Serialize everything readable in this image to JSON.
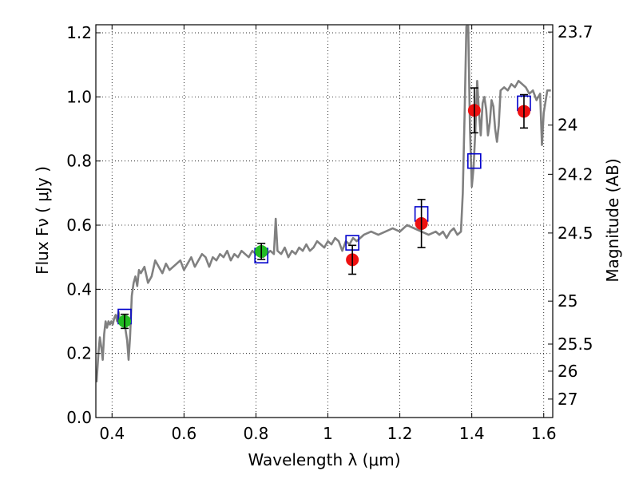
{
  "chart_data": {
    "type": "scatter",
    "xlabel": "Wavelength  λ (μm)",
    "ylabel": "Flux  Fν  ( μJy )",
    "y2label": "Magnitude (AB)",
    "xlim": [
      0.355,
      1.625
    ],
    "ylim": [
      0.0,
      1.225
    ],
    "grid": true,
    "x_ticks": [
      {
        "value": 0.4,
        "label": "0.4"
      },
      {
        "value": 0.6,
        "label": "0.6"
      },
      {
        "value": 0.8,
        "label": "0.8"
      },
      {
        "value": 1.0,
        "label": "1"
      },
      {
        "value": 1.2,
        "label": "1.2"
      },
      {
        "value": 1.4,
        "label": "1.4"
      },
      {
        "value": 1.6,
        "label": "1.6"
      }
    ],
    "y_ticks": [
      {
        "value": 0.0,
        "label": "0.0"
      },
      {
        "value": 0.2,
        "label": "0.2"
      },
      {
        "value": 0.4,
        "label": "0.4"
      },
      {
        "value": 0.6,
        "label": "0.6"
      },
      {
        "value": 0.8,
        "label": "0.8"
      },
      {
        "value": 1.0,
        "label": "1.0"
      },
      {
        "value": 1.2,
        "label": "1.2"
      }
    ],
    "y2_ticks": [
      {
        "value": 23.7,
        "label": "23.7"
      },
      {
        "value": 24.0,
        "label": "24"
      },
      {
        "value": 24.2,
        "label": "24.2"
      },
      {
        "value": 24.5,
        "label": "24.5"
      },
      {
        "value": 25.0,
        "label": "25"
      },
      {
        "value": 25.5,
        "label": "25.5"
      },
      {
        "value": 26.0,
        "label": "26"
      },
      {
        "value": 27.0,
        "label": "27"
      }
    ],
    "series": [
      {
        "kind": "line",
        "color": "#808080",
        "x": [
          0.357,
          0.362,
          0.366,
          0.37,
          0.374,
          0.378,
          0.382,
          0.386,
          0.39,
          0.394,
          0.398,
          0.402,
          0.406,
          0.41,
          0.414,
          0.418,
          0.422,
          0.426,
          0.43,
          0.434,
          0.438,
          0.442,
          0.446,
          0.45,
          0.455,
          0.46,
          0.465,
          0.47,
          0.475,
          0.48,
          0.49,
          0.5,
          0.51,
          0.52,
          0.53,
          0.54,
          0.55,
          0.56,
          0.57,
          0.58,
          0.59,
          0.6,
          0.61,
          0.62,
          0.63,
          0.64,
          0.65,
          0.66,
          0.67,
          0.68,
          0.69,
          0.7,
          0.71,
          0.72,
          0.73,
          0.74,
          0.75,
          0.76,
          0.77,
          0.78,
          0.79,
          0.8,
          0.81,
          0.82,
          0.83,
          0.84,
          0.85,
          0.855,
          0.86,
          0.87,
          0.88,
          0.89,
          0.9,
          0.91,
          0.92,
          0.93,
          0.94,
          0.95,
          0.96,
          0.97,
          0.98,
          0.99,
          1.0,
          1.01,
          1.02,
          1.03,
          1.04,
          1.05,
          1.06,
          1.07,
          1.08,
          1.09,
          1.1,
          1.12,
          1.14,
          1.16,
          1.18,
          1.2,
          1.22,
          1.24,
          1.26,
          1.28,
          1.3,
          1.31,
          1.32,
          1.33,
          1.34,
          1.35,
          1.36,
          1.37,
          1.375,
          1.38,
          1.385,
          1.39,
          1.395,
          1.4,
          1.405,
          1.41,
          1.415,
          1.42,
          1.425,
          1.43,
          1.435,
          1.44,
          1.445,
          1.45,
          1.455,
          1.46,
          1.465,
          1.47,
          1.475,
          1.48,
          1.49,
          1.5,
          1.51,
          1.52,
          1.53,
          1.54,
          1.55,
          1.56,
          1.57,
          1.58,
          1.59,
          1.595,
          1.6,
          1.61,
          1.62
        ],
        "y": [
          0.11,
          0.2,
          0.25,
          0.22,
          0.18,
          0.26,
          0.3,
          0.28,
          0.3,
          0.29,
          0.3,
          0.29,
          0.31,
          0.32,
          0.3,
          0.33,
          0.3,
          0.31,
          0.29,
          0.3,
          0.27,
          0.24,
          0.18,
          0.25,
          0.38,
          0.42,
          0.44,
          0.41,
          0.46,
          0.45,
          0.47,
          0.42,
          0.44,
          0.49,
          0.47,
          0.45,
          0.48,
          0.46,
          0.47,
          0.48,
          0.49,
          0.46,
          0.48,
          0.5,
          0.47,
          0.49,
          0.51,
          0.5,
          0.47,
          0.5,
          0.49,
          0.51,
          0.5,
          0.52,
          0.49,
          0.51,
          0.5,
          0.52,
          0.51,
          0.5,
          0.52,
          0.51,
          0.53,
          0.5,
          0.51,
          0.52,
          0.51,
          0.62,
          0.52,
          0.51,
          0.53,
          0.5,
          0.52,
          0.51,
          0.53,
          0.52,
          0.54,
          0.52,
          0.53,
          0.55,
          0.54,
          0.53,
          0.55,
          0.54,
          0.56,
          0.55,
          0.52,
          0.55,
          0.54,
          0.56,
          0.55,
          0.56,
          0.57,
          0.58,
          0.57,
          0.58,
          0.59,
          0.58,
          0.6,
          0.59,
          0.58,
          0.57,
          0.58,
          0.57,
          0.58,
          0.56,
          0.58,
          0.59,
          0.57,
          0.58,
          0.7,
          0.95,
          1.22,
          1.22,
          0.9,
          0.72,
          0.78,
          0.9,
          1.05,
          0.95,
          0.88,
          0.98,
          1.0,
          0.96,
          0.88,
          0.92,
          0.99,
          0.97,
          0.9,
          0.86,
          0.91,
          1.02,
          1.03,
          1.02,
          1.04,
          1.03,
          1.05,
          1.04,
          1.03,
          1.01,
          1.02,
          0.99,
          1.01,
          0.85,
          0.95,
          1.02,
          1.02
        ]
      },
      {
        "kind": "model_boxes",
        "color": "#0000cc",
        "x": [
          0.435,
          0.815,
          1.068,
          1.26,
          1.407,
          1.545
        ],
        "y": [
          0.315,
          0.505,
          0.545,
          0.635,
          0.8,
          0.98
        ]
      },
      {
        "kind": "observed",
        "color": "#22bb22",
        "x": [
          0.435,
          0.815
        ],
        "y": [
          0.3,
          0.518
        ],
        "yerr": [
          0.022,
          0.025
        ]
      },
      {
        "kind": "observed",
        "color": "#ee1111",
        "x": [
          1.068,
          1.26,
          1.407,
          1.545
        ],
        "y": [
          0.492,
          0.605,
          0.958,
          0.955
        ],
        "yerr": [
          0.045,
          0.075,
          0.07,
          0.052
        ]
      }
    ]
  }
}
